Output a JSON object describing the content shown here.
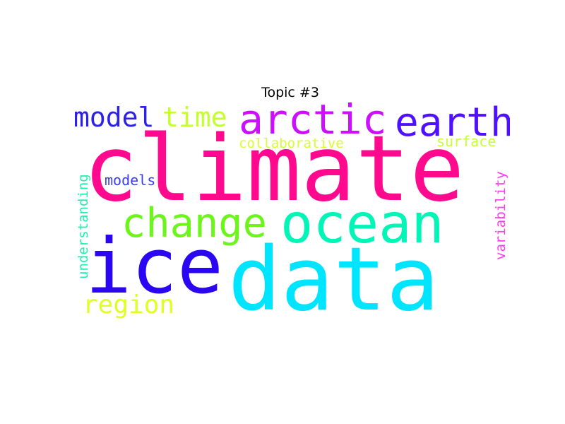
{
  "title": "Topic #3",
  "words": [
    {
      "text": "climate",
      "color": "#ff0a8e",
      "orientation": "horizontal"
    },
    {
      "text": "data",
      "color": "#00e5ff",
      "orientation": "horizontal"
    },
    {
      "text": "ice",
      "color": "#2a06f2",
      "orientation": "horizontal"
    },
    {
      "text": "ocean",
      "color": "#00f5b6",
      "orientation": "horizontal"
    },
    {
      "text": "arctic",
      "color": "#cc10ff",
      "orientation": "horizontal"
    },
    {
      "text": "earth",
      "color": "#4e10ff",
      "orientation": "horizontal"
    },
    {
      "text": "change",
      "color": "#6cf51a",
      "orientation": "horizontal"
    },
    {
      "text": "model",
      "color": "#2d20e8",
      "orientation": "horizontal"
    },
    {
      "text": "time",
      "color": "#c4ff2a",
      "orientation": "horizontal"
    },
    {
      "text": "region",
      "color": "#dfff22",
      "orientation": "horizontal"
    },
    {
      "text": "models",
      "color": "#3b3df5",
      "orientation": "horizontal"
    },
    {
      "text": "collaborative",
      "color": "#d6ff30",
      "orientation": "horizontal"
    },
    {
      "text": "surface",
      "color": "#c6ff33",
      "orientation": "horizontal"
    },
    {
      "text": "understanding",
      "color": "#1ef0a8",
      "orientation": "vertical"
    },
    {
      "text": "variability",
      "color": "#ff3cf0",
      "orientation": "vertical"
    }
  ]
}
